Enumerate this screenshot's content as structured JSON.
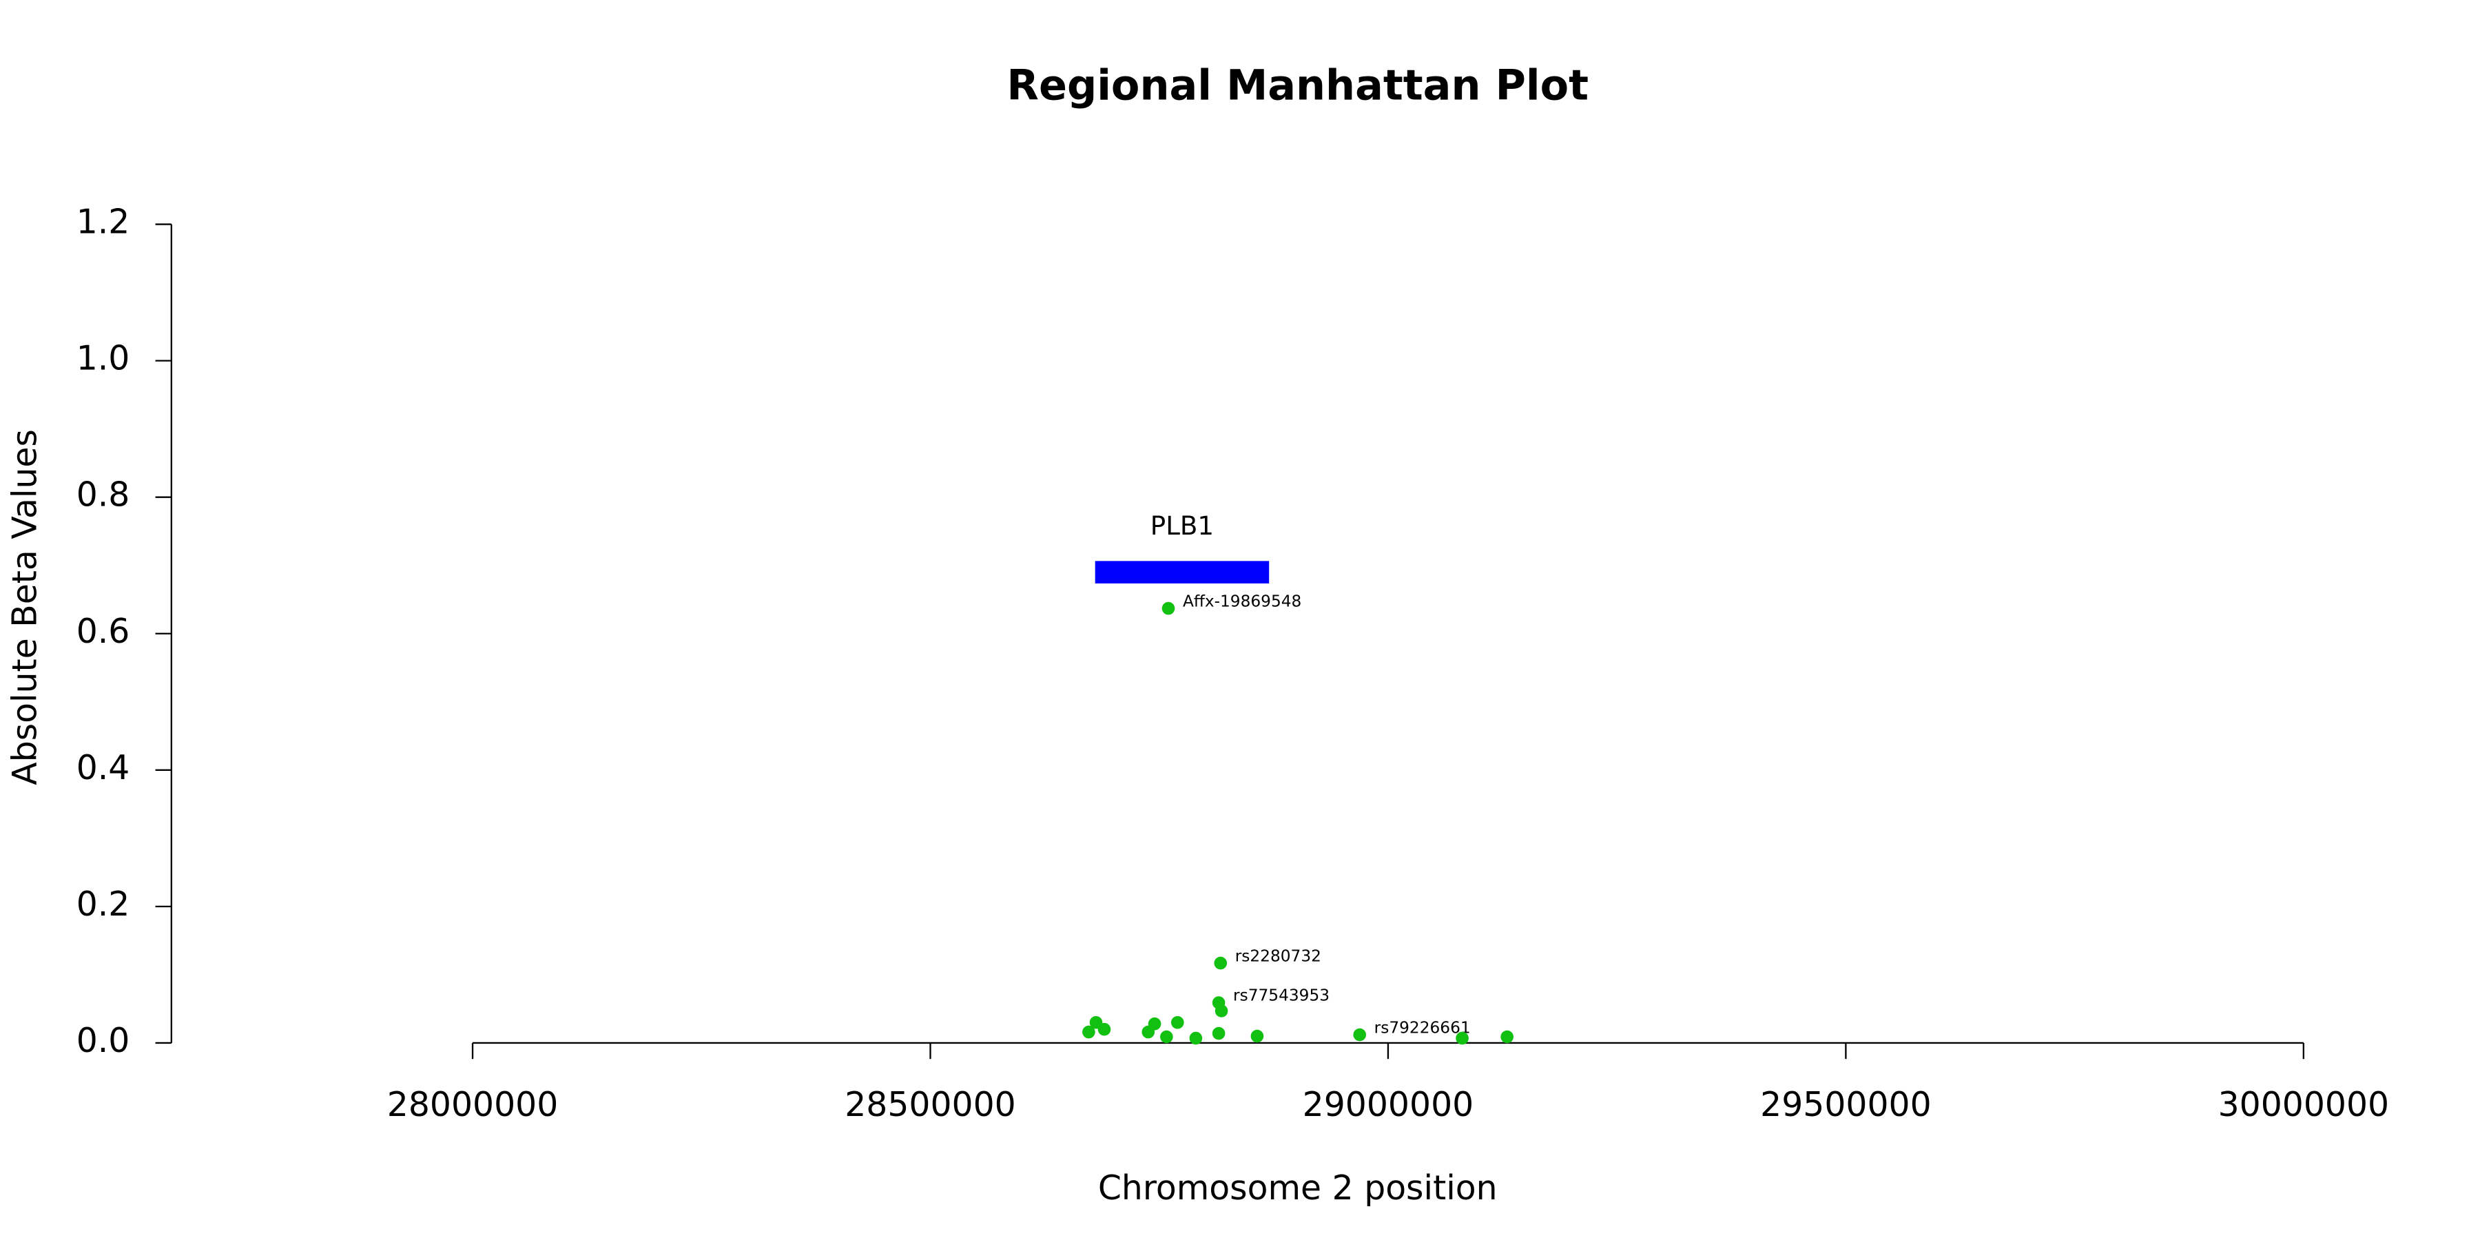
{
  "chart_data": {
    "type": "scatter",
    "title": "Regional Manhattan Plot",
    "x_label": "Chromosome 2 position",
    "y_label": "Absolute Beta Values",
    "color": "#11c011",
    "x": [
      28760000,
      28817000,
      28815000,
      28818000,
      28969000,
      29081000,
      29130000,
      28673000,
      28681000,
      28690000,
      28738000,
      28758000,
      28790000,
      28815000,
      28857000,
      28745000,
      28770000
    ],
    "values": [
      0.637,
      0.117,
      0.059,
      0.047,
      0.012,
      0.007,
      0.009,
      0.016,
      0.03,
      0.02,
      0.016,
      0.009,
      0.007,
      0.014,
      0.01,
      0.028,
      0.03
    ],
    "point_labels": [
      "Affx-19869548",
      "rs2280732",
      "rs77543953",
      null,
      "rs79226661",
      null,
      null,
      null,
      null,
      null,
      null,
      null,
      null,
      null,
      null,
      null,
      null
    ],
    "gene": {
      "name": "PLB1",
      "start": 28680000,
      "end": 28870000,
      "y": 0.69,
      "color": "#0000ff"
    },
    "xlim": [
      27671000,
      30100000
    ],
    "ylim": [
      0,
      1.2
    ],
    "xticks": [
      28000000,
      28500000,
      29000000,
      29500000,
      30000000
    ],
    "yticks": [
      {
        "value": 0,
        "label": "0.0"
      },
      0.2,
      0.4,
      0.6,
      0.8,
      {
        "value": 1,
        "label": "1.0"
      },
      1.2
    ]
  }
}
